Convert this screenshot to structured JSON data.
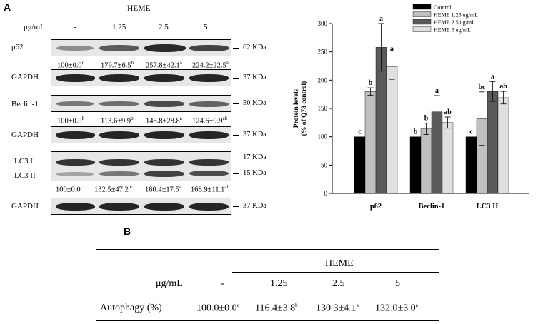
{
  "panels": {
    "a": "A",
    "b": "B"
  },
  "blot": {
    "treatment": "HEME",
    "unit": "μg/mL",
    "doses": [
      "-",
      "1.25",
      "2.5",
      "5"
    ],
    "p62": {
      "label": "p62",
      "kda": "62 KDa",
      "band_intensity": [
        0.45,
        0.7,
        0.9,
        0.8
      ],
      "quant": [
        {
          "v": "100±0.0",
          "s": "c"
        },
        {
          "v": "179.7±6.5",
          "s": "b"
        },
        {
          "v": "257.8±42.1",
          "s": "a"
        },
        {
          "v": "224.2±22.5",
          "s": "a"
        }
      ]
    },
    "gapdh1": {
      "label": "GAPDH",
      "kda": "37 KDa"
    },
    "beclin": {
      "label": "Beclin-1",
      "kda": "50 KDa",
      "band_intensity": [
        0.55,
        0.6,
        0.75,
        0.65
      ],
      "quant": [
        {
          "v": "100±0.0",
          "s": "b"
        },
        {
          "v": "113.6±9.9",
          "s": "b"
        },
        {
          "v": "143.8±28.8",
          "s": "a"
        },
        {
          "v": "124.6±9.9",
          "s": "ab"
        }
      ]
    },
    "gapdh2": {
      "label": "GAPDH",
      "kda": "37 KDa"
    },
    "lc3": {
      "label1": "LC3 I",
      "label2": "LC3 II",
      "kda1": "17 KDa",
      "kda2": "15 KDa",
      "quant": [
        {
          "v": "100±0.0",
          "s": "c"
        },
        {
          "v": "132.5±47.2",
          "s": "bc"
        },
        {
          "v": "180.4±17.5",
          "s": "a"
        },
        {
          "v": "168.9±11.1",
          "s": "ab"
        }
      ]
    },
    "gapdh3": {
      "label": "GAPDH",
      "kda": "37 KDa"
    }
  },
  "chart_data": {
    "type": "bar",
    "ylabel": "Protein levels\n(% of Q78 control)",
    "ylim": [
      0,
      300
    ],
    "yticks": [
      "0",
      "50",
      "100",
      "150",
      "200",
      "250",
      "300"
    ],
    "categories": [
      "p62",
      "Beclin-1",
      "LC3 II"
    ],
    "series": [
      {
        "name": "Control",
        "color": "#000000",
        "values": [
          100,
          100,
          100
        ],
        "err": [
          0,
          0,
          0
        ],
        "sig": [
          "c",
          "b",
          "c"
        ]
      },
      {
        "name": "HEME 1.25 ug/mL",
        "color": "#c0c0c0",
        "values": [
          180,
          114,
          132
        ],
        "err": [
          6.5,
          9.9,
          47.2
        ],
        "sig": [
          "b",
          "b",
          "bc"
        ]
      },
      {
        "name": "HEME 2.5 ug/mL",
        "color": "#5a5a5a",
        "values": [
          258,
          144,
          180
        ],
        "err": [
          42.1,
          28.8,
          17.5
        ],
        "sig": [
          "a",
          "a",
          "a"
        ]
      },
      {
        "name": "HEME 5 ug/mL",
        "color": "#e0e0e0",
        "values": [
          224,
          125,
          169
        ],
        "err": [
          22.5,
          9.9,
          11.1
        ],
        "sig": [
          "a",
          "ab",
          "ab"
        ]
      }
    ],
    "legend_position": "top-right",
    "grid": false
  },
  "table": {
    "header": "HEME",
    "unit_label": "μg/mL",
    "doses": [
      "-",
      "1.25",
      "2.5",
      "5"
    ],
    "row_label": "Autophagy (%)",
    "values": [
      {
        "v": "100.0±0.0",
        "s": "c"
      },
      {
        "v": "116.4±3.8",
        "s": "b"
      },
      {
        "v": "130.3±4.1",
        "s": "a"
      },
      {
        "v": "132.0±3.0",
        "s": "a"
      }
    ]
  }
}
